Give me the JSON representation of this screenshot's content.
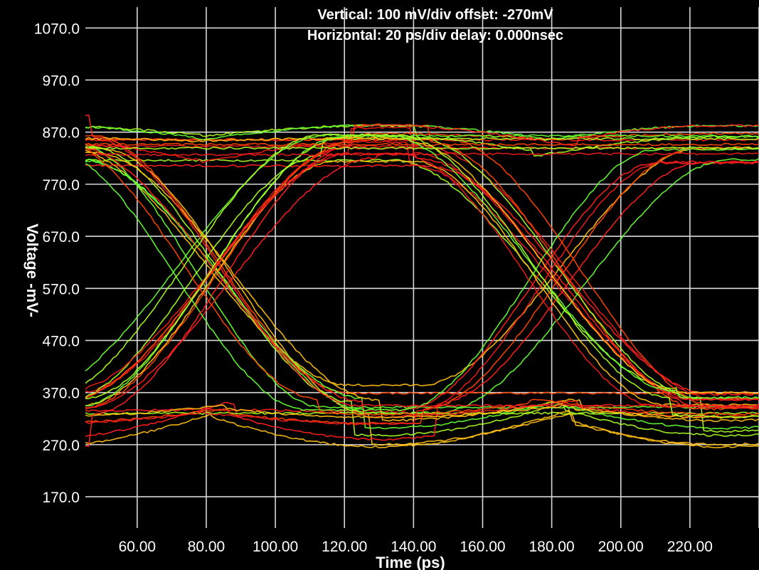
{
  "chart_data": {
    "type": "line",
    "title_lines": [
      "Vertical: 100 mV/div  offset: -270mV",
      "Horizontal: 20 ps/div  delay: 0.000nsec"
    ],
    "xlabel": "Time  (ps)",
    "ylabel": "Voltage  -mV-",
    "xlim": [
      45,
      240
    ],
    "ylim": [
      110,
      1110
    ],
    "x_ticks": [
      "60.00",
      "80.00",
      "100.00",
      "120.00",
      "140.00",
      "160.00",
      "180.00",
      "200.00",
      "220.00"
    ],
    "y_ticks": [
      "1070.0",
      "970.0",
      "870.0",
      "770.0",
      "670.0",
      "570.0",
      "470.0",
      "370.0",
      "270.0",
      "170.0"
    ],
    "grid": true,
    "eye": {
      "low_mV": 370,
      "high_mV": 830,
      "crossing_mV": 600,
      "crossings_ps": [
        80,
        180
      ],
      "eye_center_ps": 130,
      "unit_interval_ps": 100,
      "overshoot_max_mV": 900,
      "undershoot_min_mV": 300
    },
    "trace_colors": [
      "#ff2020",
      "#aaff22",
      "#ffc010",
      "#ff4400",
      "#66ff33",
      "#ee1a1a"
    ]
  }
}
